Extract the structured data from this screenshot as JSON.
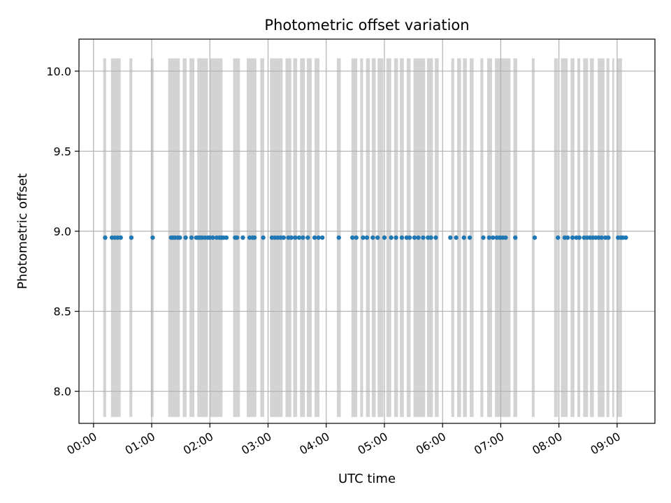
{
  "chart_data": {
    "type": "scatter",
    "title": "Photometric offset variation",
    "xlabel": "UTC time",
    "ylabel": "Photometric offset",
    "xlim": [
      "23:45",
      "09:39"
    ],
    "ylim": [
      7.8,
      10.2
    ],
    "grid": true,
    "x_ticks": [
      "00:00",
      "01:00",
      "02:00",
      "03:00",
      "04:00",
      "05:00",
      "06:00",
      "07:00",
      "08:00",
      "09:00"
    ],
    "y_ticks": [
      "8.0",
      "8.5",
      "9.0",
      "9.5",
      "10.0"
    ],
    "band_range": [
      7.84,
      10.08
    ],
    "colors": {
      "points": "#1f77b4",
      "bands": "#d3d3d3",
      "grid": "#b0b0b0",
      "axes": "#000000"
    },
    "series": [
      {
        "values_time": [
          "00:12",
          "00:19",
          "00:22",
          "00:25",
          "00:28",
          "00:39",
          "01:01",
          "01:20",
          "01:22",
          "01:24",
          "01:27",
          "01:29",
          "01:35",
          "01:41",
          "01:46",
          "01:48",
          "01:50",
          "01:52",
          "01:55",
          "01:58",
          "02:00",
          "02:03",
          "02:07",
          "02:10",
          "02:12",
          "02:14",
          "02:17",
          "02:26",
          "02:28",
          "02:34",
          "02:41",
          "02:44",
          "02:46",
          "02:55",
          "03:04",
          "03:07",
          "03:10",
          "03:13",
          "03:16",
          "03:21",
          "03:24",
          "03:28",
          "03:32",
          "03:36",
          "03:41",
          "03:48",
          "03:52",
          "03:56",
          "04:13",
          "04:27",
          "04:31",
          "04:38",
          "04:42",
          "04:48",
          "04:53",
          "05:00",
          "05:07",
          "05:12",
          "05:18",
          "05:23",
          "05:26",
          "05:31",
          "05:35",
          "05:40",
          "05:45",
          "05:48",
          "05:53",
          "06:08",
          "06:14",
          "06:22",
          "06:28",
          "06:42",
          "06:48",
          "06:52",
          "06:56",
          "06:59",
          "07:02",
          "07:05",
          "07:15",
          "07:35",
          "07:59",
          "08:06",
          "08:09",
          "08:14",
          "08:18",
          "08:21",
          "08:26",
          "08:29",
          "08:32",
          "08:35",
          "08:38",
          "08:41",
          "08:44",
          "08:48",
          "08:51",
          "09:01",
          "09:04",
          "09:06",
          "09:09"
        ],
        "values_y": 8.96
      }
    ],
    "background_bands_time": [
      [
        "00:10",
        "00:13"
      ],
      [
        "00:18",
        "00:28"
      ],
      [
        "00:37",
        "00:40"
      ],
      [
        "00:59",
        "01:02"
      ],
      [
        "01:17",
        "01:29"
      ],
      [
        "01:32",
        "01:36"
      ],
      [
        "01:39",
        "01:44"
      ],
      [
        "01:47",
        "01:58"
      ],
      [
        "02:00",
        "02:13"
      ],
      [
        "02:24",
        "02:31"
      ],
      [
        "02:38",
        "02:48"
      ],
      [
        "02:52",
        "02:56"
      ],
      [
        "03:02",
        "03:15"
      ],
      [
        "03:18",
        "03:24"
      ],
      [
        "03:26",
        "03:30"
      ],
      [
        "03:33",
        "03:38"
      ],
      [
        "03:40",
        "03:45"
      ],
      [
        "03:48",
        "03:53"
      ],
      [
        "04:11",
        "04:15"
      ],
      [
        "04:26",
        "04:32"
      ],
      [
        "04:35",
        "04:38"
      ],
      [
        "04:41",
        "04:45"
      ],
      [
        "04:47",
        "04:51"
      ],
      [
        "04:53",
        "04:59"
      ],
      [
        "05:02",
        "05:07"
      ],
      [
        "05:10",
        "05:14"
      ],
      [
        "05:16",
        "05:20"
      ],
      [
        "05:23",
        "05:27"
      ],
      [
        "05:30",
        "05:42"
      ],
      [
        "05:44",
        "05:50"
      ],
      [
        "05:52",
        "05:56"
      ],
      [
        "06:09",
        "06:12"
      ],
      [
        "06:15",
        "06:19"
      ],
      [
        "06:21",
        "06:25"
      ],
      [
        "06:28",
        "06:32"
      ],
      [
        "06:39",
        "06:42"
      ],
      [
        "06:46",
        "06:51"
      ],
      [
        "06:54",
        "07:10"
      ],
      [
        "07:13",
        "07:17"
      ],
      [
        "07:32",
        "07:35"
      ],
      [
        "07:55",
        "07:59"
      ],
      [
        "08:02",
        "08:09"
      ],
      [
        "08:12",
        "08:16"
      ],
      [
        "08:19",
        "08:22"
      ],
      [
        "08:25",
        "08:30"
      ],
      [
        "08:32",
        "08:36"
      ],
      [
        "08:40",
        "08:47"
      ],
      [
        "08:49",
        "08:52"
      ],
      [
        "08:55",
        "08:57"
      ],
      [
        "09:00",
        "09:05"
      ]
    ]
  }
}
